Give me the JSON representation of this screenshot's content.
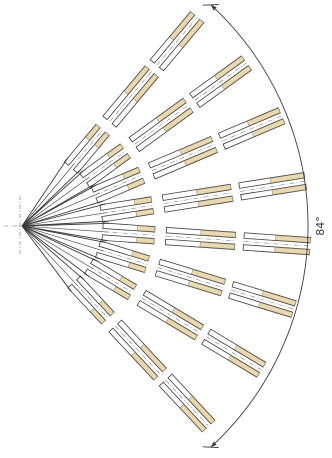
{
  "angle_label": "84°",
  "colors": {
    "line": "#3c3c3c",
    "thin": "#6a6a6a",
    "fill": "#e8d9b2",
    "fill_stroke": "#8a7d5e",
    "background": "#ffffff"
  },
  "arm_count": 8
}
